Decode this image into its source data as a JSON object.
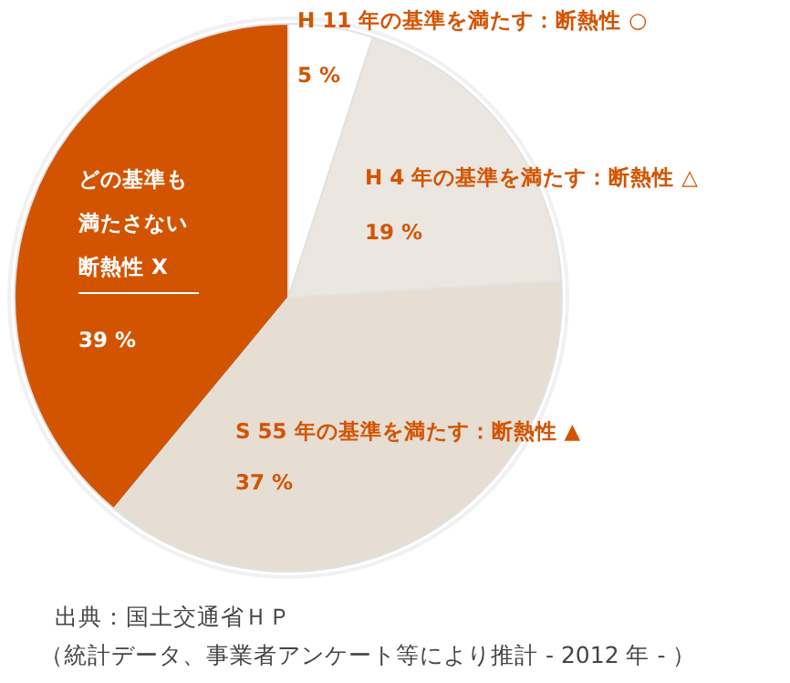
{
  "chart_data": {
    "type": "pie",
    "categories": [
      "H 11 年の基準を満たす：断熱性 ○",
      "H 4 年の基準を満たす：断熱性 △",
      "S 55 年の基準を満たす：断熱性 ▲",
      "どの基準も満たさない断熱性 X"
    ],
    "values": [
      5,
      19,
      37,
      39
    ],
    "value_labels": [
      "5 %",
      "19 %",
      "37 %",
      "39 %"
    ],
    "colors": [
      "#ffffff",
      "#ebe6e0",
      "#e6ddd3",
      "#d35400"
    ],
    "annotations": [
      "出典：国土交通省ＨＰ",
      "（統計データ、事業者アンケート等により推計 - 2012 年 - ）"
    ]
  }
}
